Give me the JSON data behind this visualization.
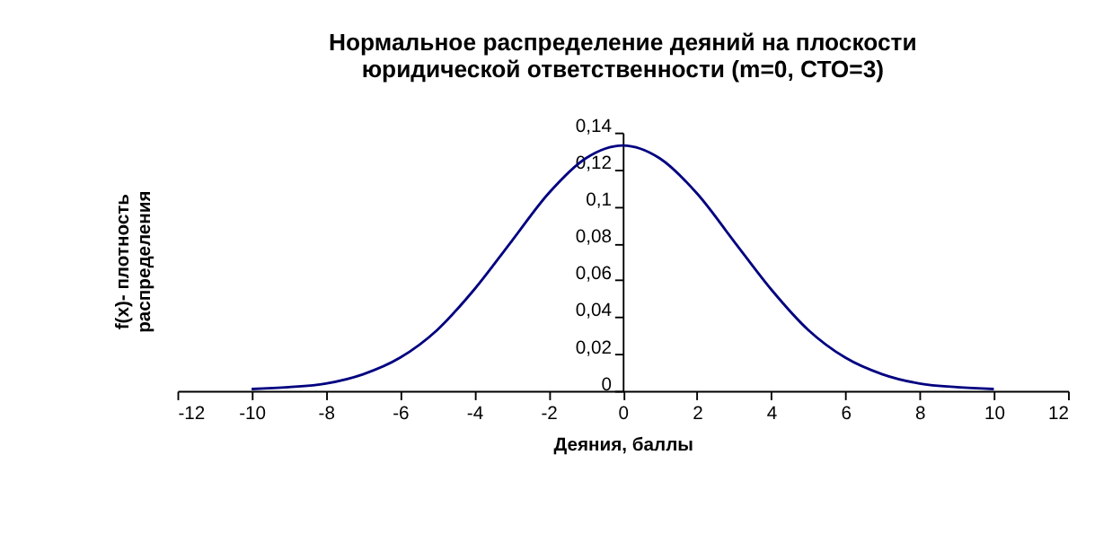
{
  "chart_data": {
    "type": "line",
    "title": "Нормальное распределение деяний на плоскости\nюридической ответственности (m=0, СТО=3)",
    "xlabel": "Деяния, баллы",
    "ylabel": "f(x)- плотность\nраспределения",
    "x": [
      -10,
      -9,
      -8,
      -7,
      -6,
      -5,
      -4,
      -3,
      -2,
      -1,
      0,
      1,
      2,
      3,
      4,
      5,
      6,
      7,
      8,
      9,
      10
    ],
    "series": [
      {
        "color": "#000080",
        "values": [
          0.001,
          0.002,
          0.004,
          0.009,
          0.018,
          0.033,
          0.055,
          0.081,
          0.107,
          0.126,
          0.133,
          0.126,
          0.107,
          0.081,
          0.055,
          0.033,
          0.018,
          0.009,
          0.004,
          0.002,
          0.001
        ]
      }
    ],
    "xlim": [
      -12,
      12
    ],
    "xticks": [
      -12,
      -10,
      -8,
      -6,
      -4,
      -2,
      0,
      2,
      4,
      6,
      8,
      10,
      12
    ],
    "ylim": [
      0,
      0.14
    ],
    "yticks": [
      0,
      {
        "value": 0.02,
        "label": "0,02"
      },
      {
        "value": 0.04,
        "label": "0,04"
      },
      {
        "value": 0.06,
        "label": "0,06"
      },
      {
        "value": 0.08,
        "label": "0,08"
      },
      {
        "value": 0.1,
        "label": "0,1"
      },
      {
        "value": 0.12,
        "label": "0,12"
      },
      {
        "value": 0.14,
        "label": "0,14"
      }
    ],
    "grid": false,
    "marker": "none",
    "line_style": "solid"
  }
}
